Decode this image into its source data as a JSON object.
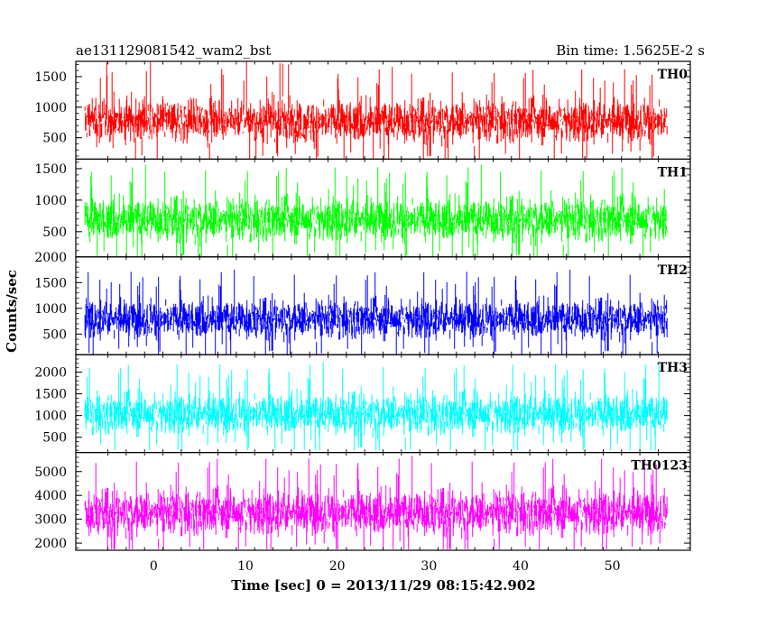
{
  "chart_data": {
    "type": "line",
    "title_left": "ae131129081542_wam2_bst",
    "title_right": "Bin time: 1.5625E-2 s",
    "xlabel": "Time [sec] 0 = 2013/11/29 08:15:42.902",
    "ylabel": "Counts/sec",
    "xlim": [
      -8.5,
      58.5
    ],
    "x_data_range": [
      -7.5,
      56
    ],
    "x_ticks": [
      0,
      10,
      20,
      30,
      40,
      50
    ],
    "x_tick_labels": [
      "0",
      "10",
      "20",
      "30",
      "40",
      "50"
    ],
    "grid": false,
    "panels": [
      {
        "name": "TH0",
        "color": "#ff0000",
        "ylim": [
          150,
          1750
        ],
        "y_ticks": [
          500,
          1000,
          1500
        ],
        "y_tick_labels": [
          "500",
          "1000",
          "1500"
        ],
        "mean": 780,
        "typical_low": 280,
        "typical_high": 1250,
        "max": 1750,
        "min": 150
      },
      {
        "name": "TH1",
        "color": "#00ff00",
        "ylim": [
          100,
          1650
        ],
        "y_ticks": [
          500,
          1000,
          1500
        ],
        "y_tick_labels": [
          "500",
          "1000",
          "1500"
        ],
        "mean": 700,
        "typical_low": 250,
        "typical_high": 1200,
        "max": 1650,
        "min": 100
      },
      {
        "name": "TH2",
        "color": "#0000ff",
        "ylim": [
          100,
          2000
        ],
        "y_ticks": [
          500,
          1000,
          1500,
          2000
        ],
        "y_tick_labels": [
          "500",
          "1000",
          "1500",
          "2000"
        ],
        "mean": 800,
        "typical_low": 300,
        "typical_high": 1350,
        "max": 1950,
        "min": 100
      },
      {
        "name": "TH3",
        "color": "#00ffff",
        "ylim": [
          150,
          2400
        ],
        "y_ticks": [
          500,
          1000,
          1500,
          2000
        ],
        "y_tick_labels": [
          "500",
          "1000",
          "1500",
          "2000"
        ],
        "mean": 1050,
        "typical_low": 450,
        "typical_high": 1750,
        "max": 2350,
        "min": 200
      },
      {
        "name": "TH0123",
        "color": "#ff00ff",
        "ylim": [
          1700,
          5800
        ],
        "y_ticks": [
          2000,
          3000,
          4000,
          5000
        ],
        "y_tick_labels": [
          "2000",
          "3000",
          "4000",
          "5000"
        ],
        "mean": 3300,
        "typical_low": 2100,
        "typical_high": 4700,
        "max": 5700,
        "min": 1750
      }
    ]
  }
}
